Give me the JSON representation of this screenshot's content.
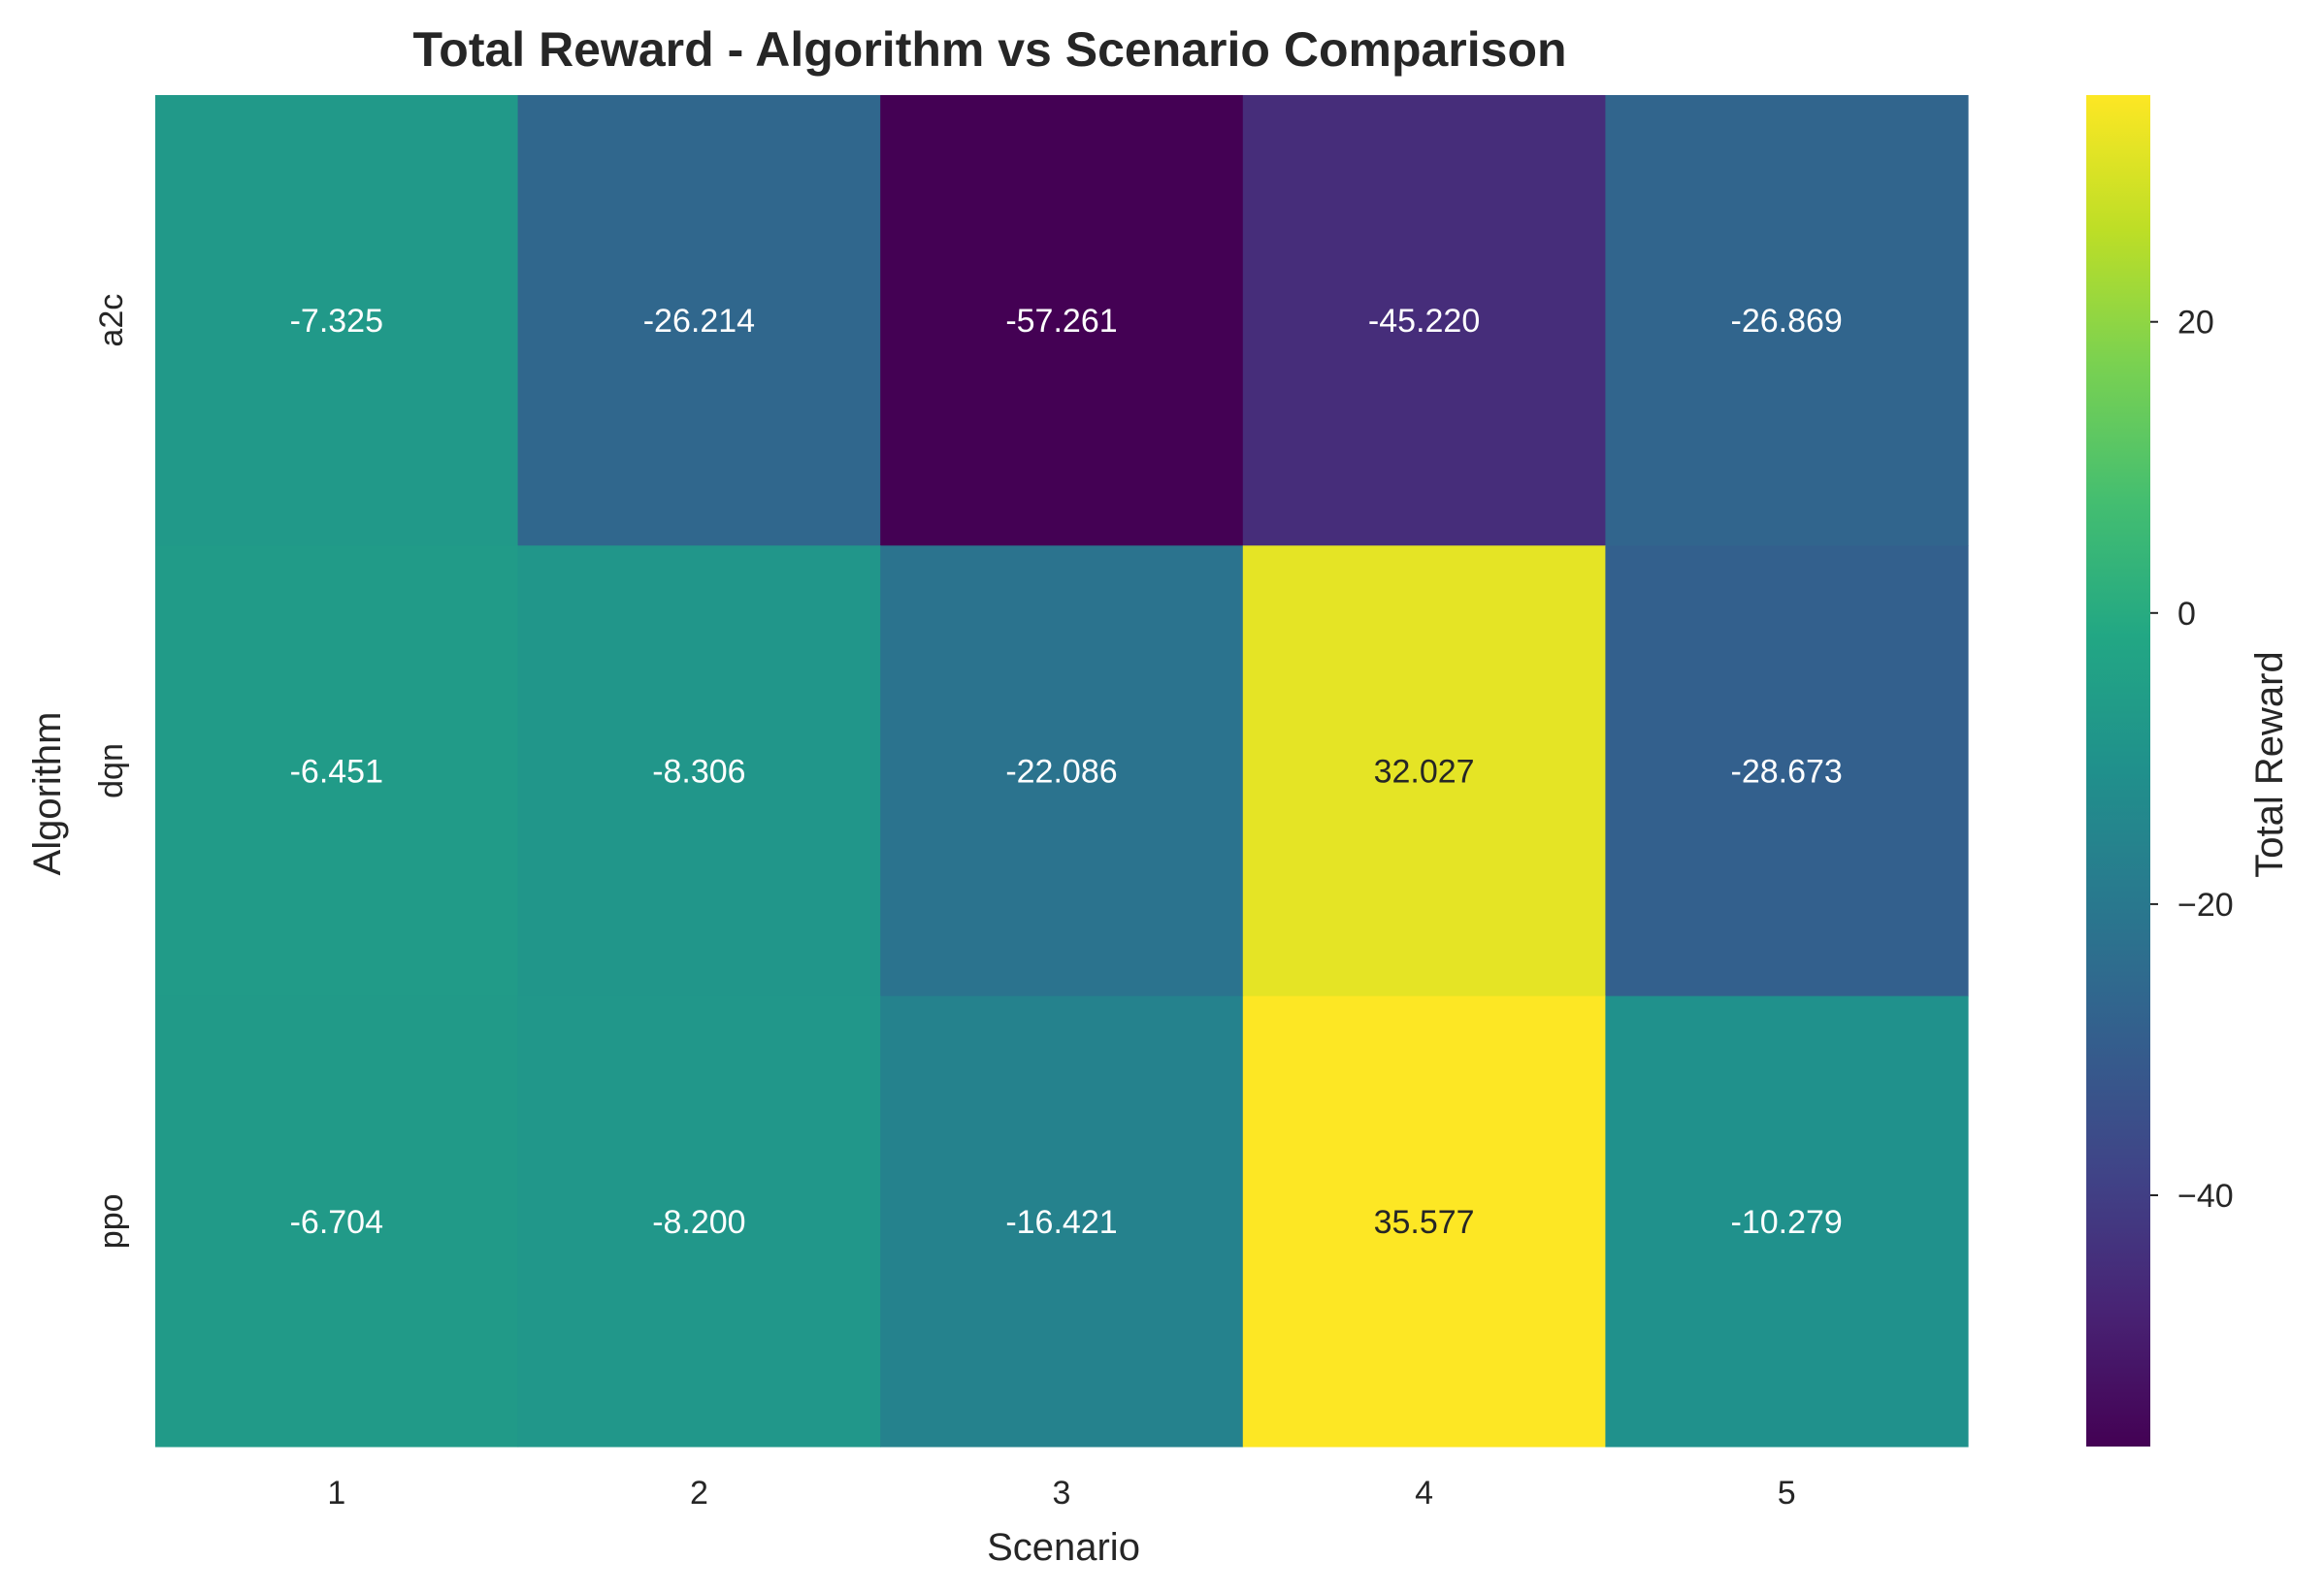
{
  "chart_data": {
    "type": "heatmap",
    "title": "Total Reward - Algorithm vs Scenario Comparison",
    "xlabel": "Scenario",
    "ylabel": "Algorithm",
    "colorbar_label": "Total Reward",
    "colormap": "viridis",
    "x_categories": [
      "1",
      "2",
      "3",
      "4",
      "5"
    ],
    "y_categories": [
      "a2c",
      "dqn",
      "ppo"
    ],
    "values": [
      [
        -7.325,
        -26.214,
        -57.261,
        -45.22,
        -26.869
      ],
      [
        -6.451,
        -8.306,
        -22.086,
        32.027,
        -28.673
      ],
      [
        -6.704,
        -8.2,
        -16.421,
        35.577,
        -10.279
      ]
    ],
    "value_labels": [
      [
        "-7.325",
        "-26.214",
        "-57.261",
        "-45.220",
        "-26.869"
      ],
      [
        "-6.451",
        "-8.306",
        "-22.086",
        "32.027",
        "-28.673"
      ],
      [
        "-6.704",
        "-8.200",
        "-16.421",
        "35.577",
        "-10.279"
      ]
    ],
    "color_range": [
      -57.261,
      35.577
    ],
    "colorbar_ticks": [
      20,
      0,
      -20,
      -40
    ],
    "colorbar_tick_labels": [
      "20",
      "0",
      "−20",
      "−40"
    ],
    "grid": false
  }
}
